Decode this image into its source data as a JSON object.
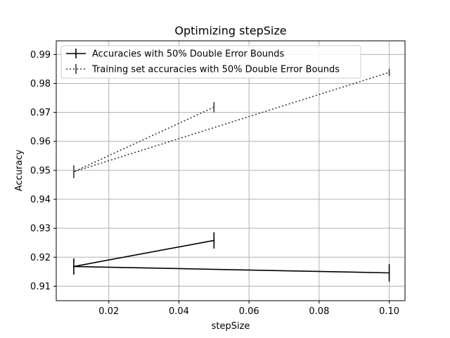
{
  "chart_data": {
    "type": "line",
    "title": "Optimizing stepSize",
    "xlabel": "stepSize",
    "ylabel": "Accuracy",
    "xlim": [
      0.005,
      0.1045
    ],
    "ylim": [
      0.905,
      0.9947
    ],
    "xticks": [
      0.02,
      0.04,
      0.06,
      0.08,
      0.1
    ],
    "xtick_labels": [
      "0.02",
      "0.04",
      "0.06",
      "0.08",
      "0.10"
    ],
    "yticks": [
      0.91,
      0.92,
      0.93,
      0.94,
      0.95,
      0.96,
      0.97,
      0.98,
      0.99
    ],
    "ytick_labels": [
      "0.91",
      "0.92",
      "0.93",
      "0.94",
      "0.95",
      "0.96",
      "0.97",
      "0.98",
      "0.99"
    ],
    "grid": true,
    "legend_position": "top-left",
    "series": [
      {
        "name": "Accuracies with 50% Double Error Bounds",
        "style": "solid",
        "color": "#000000",
        "x": [
          0.05,
          0.01,
          0.1
        ],
        "y": [
          0.9258,
          0.9168,
          0.9146
        ],
        "yerr": [
          0.0028,
          0.0028,
          0.003
        ]
      },
      {
        "name": "Training set accuracies with 50% Double Error Bounds",
        "style": "dotted",
        "color": "#3a3a3a",
        "x": [
          0.05,
          0.01,
          0.1
        ],
        "y": [
          0.9718,
          0.9495,
          0.9838
        ],
        "yerr": [
          0.0018,
          0.0022,
          0.0012
        ]
      }
    ]
  }
}
